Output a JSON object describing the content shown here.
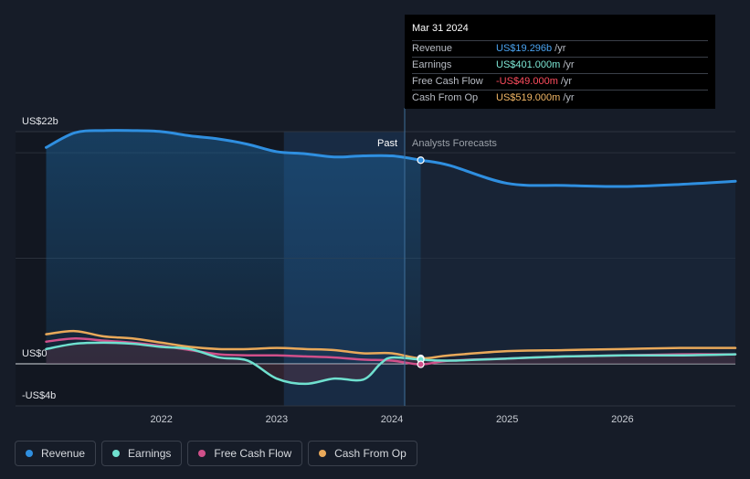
{
  "tooltip": {
    "date": "Mar 31 2024",
    "rows": [
      {
        "label": "Revenue",
        "value": "US$19.296b",
        "unit": "/yr",
        "color": "#4aa3f0"
      },
      {
        "label": "Earnings",
        "value": "US$401.000m",
        "unit": "/yr",
        "color": "#7de8d6"
      },
      {
        "label": "Free Cash Flow",
        "value": "-US$49.000m",
        "unit": "/yr",
        "color": "#ff4d5e"
      },
      {
        "label": "Cash From Op",
        "value": "US$519.000m",
        "unit": "/yr",
        "color": "#f2b766"
      }
    ]
  },
  "legend": [
    {
      "label": "Revenue",
      "color": "#2f8fe0"
    },
    {
      "label": "Earnings",
      "color": "#6fe0cf"
    },
    {
      "label": "Free Cash Flow",
      "color": "#d0508a"
    },
    {
      "label": "Cash From Op",
      "color": "#e9a95a"
    }
  ],
  "chart_data": {
    "type": "line",
    "title": "",
    "y_unit": "US$ billions",
    "ylim": [
      -4,
      22
    ],
    "y_tick_labels": [
      {
        "value": 22,
        "label": "US$22b"
      },
      {
        "value": 0,
        "label": "US$0"
      },
      {
        "value": -4,
        "label": "-US$4b"
      }
    ],
    "x_tick_labels": [
      {
        "value": 2022.0,
        "label": "2022"
      },
      {
        "value": 2023.0,
        "label": "2023"
      },
      {
        "value": 2024.0,
        "label": "2024"
      },
      {
        "value": 2025.0,
        "label": "2025"
      },
      {
        "value": 2026.0,
        "label": "2026"
      }
    ],
    "xlim": [
      2020.75,
      2026.98
    ],
    "past_label": "Past",
    "forecast_label": "Analysts Forecasts",
    "forecast_start": 2024.25,
    "highlight_start": 2023.25,
    "series": [
      {
        "name": "Revenue",
        "color": "#2f8fe0",
        "x": [
          2021.0,
          2021.25,
          2021.5,
          2021.75,
          2022.0,
          2022.25,
          2022.5,
          2022.75,
          2023.0,
          2023.25,
          2023.5,
          2023.75,
          2024.0,
          2024.25,
          2024.5,
          2025.0,
          2025.5,
          2026.0,
          2026.5,
          2026.98
        ],
        "y": [
          20.5,
          21.9,
          22.1,
          22.1,
          22.0,
          21.6,
          21.3,
          20.8,
          20.1,
          19.9,
          19.6,
          19.7,
          19.7,
          19.296,
          18.8,
          17.1,
          16.9,
          16.8,
          17.0,
          17.3
        ]
      },
      {
        "name": "Earnings",
        "color": "#6fe0cf",
        "x": [
          2021.0,
          2021.25,
          2021.5,
          2021.75,
          2022.0,
          2022.25,
          2022.5,
          2022.75,
          2023.0,
          2023.25,
          2023.5,
          2023.75,
          2023.9,
          2024.0,
          2024.25,
          2024.5,
          2025.0,
          2025.5,
          2026.0,
          2026.5,
          2026.98
        ],
        "y": [
          1.4,
          1.9,
          2.0,
          1.9,
          1.6,
          1.4,
          0.6,
          0.3,
          -1.4,
          -1.9,
          -1.4,
          -1.5,
          0.0,
          0.6,
          0.401,
          0.3,
          0.5,
          0.7,
          0.8,
          0.8,
          0.9
        ]
      },
      {
        "name": "Free Cash Flow",
        "color": "#d0508a",
        "x": [
          2021.0,
          2021.25,
          2021.5,
          2021.75,
          2022.0,
          2022.25,
          2022.5,
          2022.75,
          2023.0,
          2023.25,
          2023.5,
          2023.75,
          2024.0,
          2024.25,
          2024.5,
          2025.0,
          2025.5,
          2026.0,
          2026.5,
          2026.98
        ],
        "y": [
          2.1,
          2.4,
          2.2,
          2.0,
          1.7,
          1.3,
          0.9,
          0.8,
          0.8,
          0.7,
          0.6,
          0.4,
          0.3,
          -0.049,
          0.3,
          0.5,
          0.7,
          0.8,
          0.9,
          0.9
        ]
      },
      {
        "name": "Cash From Op",
        "color": "#e9a95a",
        "x": [
          2021.0,
          2021.25,
          2021.5,
          2021.75,
          2022.0,
          2022.25,
          2022.5,
          2022.75,
          2023.0,
          2023.25,
          2023.5,
          2023.75,
          2024.0,
          2024.25,
          2024.5,
          2025.0,
          2025.5,
          2026.0,
          2026.5,
          2026.98
        ],
        "y": [
          2.8,
          3.1,
          2.6,
          2.4,
          2.0,
          1.6,
          1.4,
          1.4,
          1.5,
          1.4,
          1.3,
          1.0,
          1.0,
          0.519,
          0.8,
          1.2,
          1.3,
          1.4,
          1.5,
          1.5
        ]
      }
    ]
  }
}
